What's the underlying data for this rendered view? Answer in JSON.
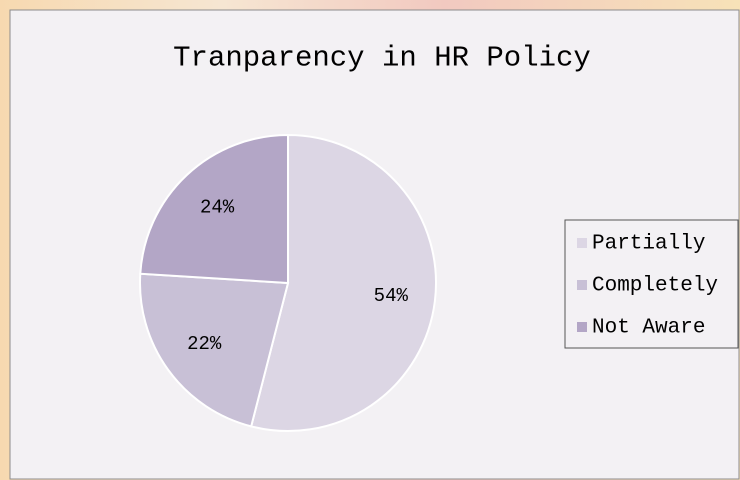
{
  "chart_data": {
    "type": "pie",
    "title": "Tranparency in HR Policy",
    "categories": [
      "Partially",
      "Completely",
      "Not Aware"
    ],
    "values": [
      54,
      22,
      24
    ],
    "value_labels": [
      "54%",
      "22%",
      "24%"
    ],
    "colors": [
      "#dcd6e4",
      "#c8c0d6",
      "#b3a6c6"
    ],
    "legend": "right"
  }
}
